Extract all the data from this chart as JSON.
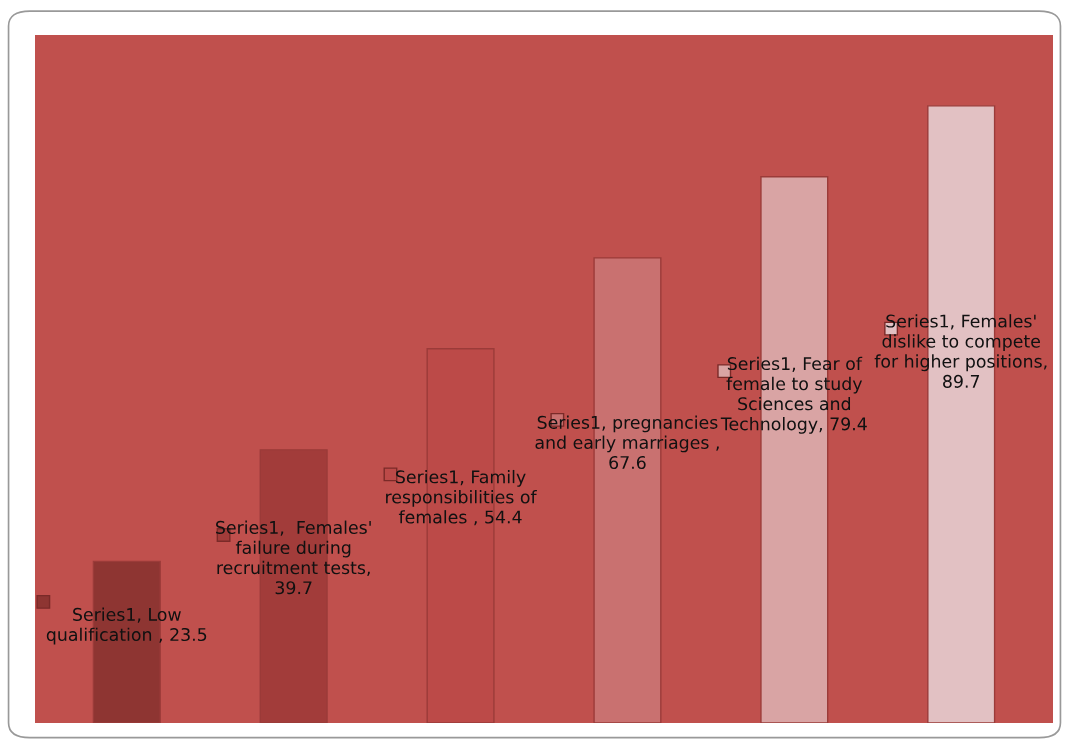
{
  "chart_data": {
    "type": "bar",
    "categories": [
      null,
      null,
      null,
      null,
      null,
      null
    ],
    "values": [
      23.5,
      39.7,
      54.4,
      67.6,
      79.4,
      89.7
    ],
    "colors": [
      "#8e3532",
      "#a23c3a",
      "#bc4a48",
      "#c97170",
      "#d9a4a4",
      "#e2c1c3"
    ],
    "value_labels": [
      "Series1, Low qualification , 23.5",
      "Series1,  Females' failure during recruitment tests, 39.7",
      "Series1, Family responsibilities of females , 54.4",
      "Series1, pregnancies and early marriages , 67.6",
      "Series1, Fear of female to study Sciences and Technology, 79.4",
      "Series1, Females' dislike to compete for higher positions, 89.7"
    ],
    "ylim": [
      0,
      100
    ],
    "tick_labels": false
  }
}
